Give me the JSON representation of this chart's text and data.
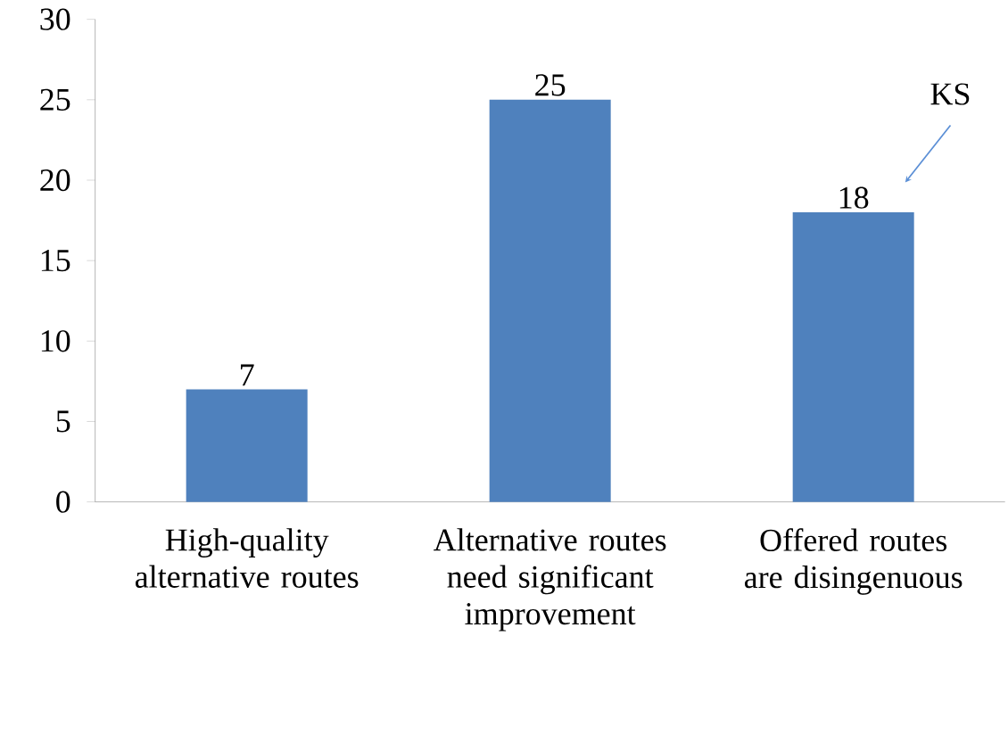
{
  "chart_data": {
    "type": "bar",
    "categories": [
      "High-quality alternative routes",
      "Alternative routes need significant improvement",
      "Offered routes are disingenuous"
    ],
    "values": [
      7,
      25,
      18
    ],
    "color": "#4f81bd",
    "ylim": [
      0,
      30
    ],
    "yticks": [
      0,
      5,
      10,
      15,
      20,
      25,
      30
    ],
    "data_labels": true,
    "annotations": [
      "KS"
    ]
  }
}
